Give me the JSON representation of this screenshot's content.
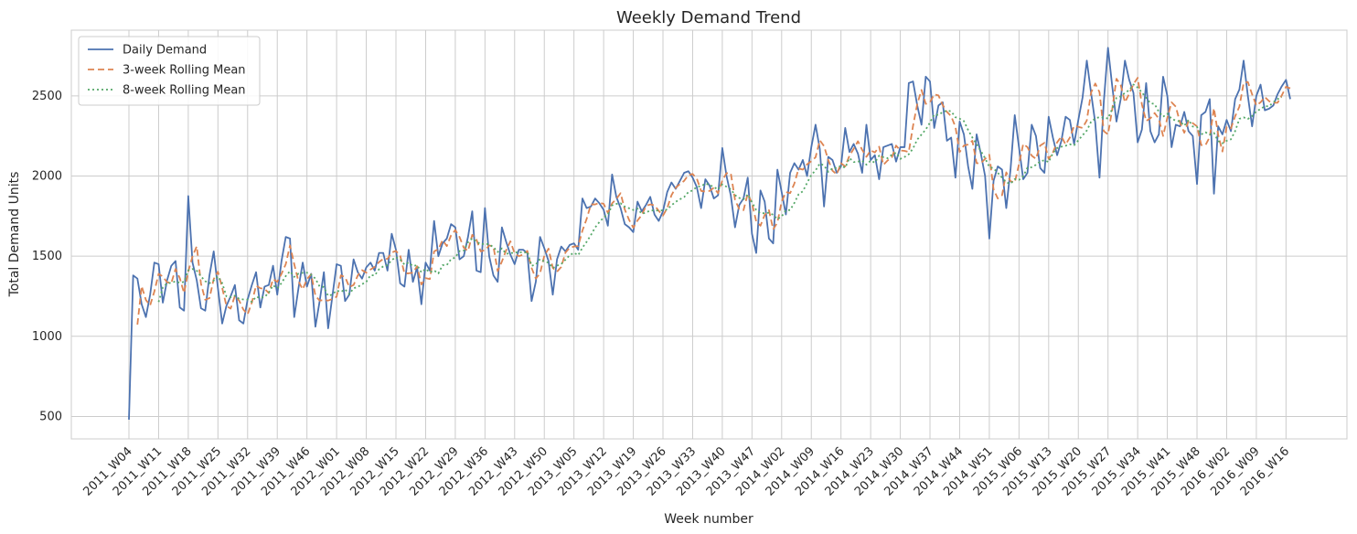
{
  "chart_data": {
    "type": "line",
    "title": "Weekly Demand Trend",
    "xlabel": "Week number",
    "ylabel": "Total Demand Units",
    "ylim": [
      360,
      2910
    ],
    "yticks": [
      500,
      1000,
      1500,
      2000,
      2500
    ],
    "grid": true,
    "legend": "top-left",
    "x_tick_labels": [
      "2011_W04",
      "2011_W11",
      "2011_W18",
      "2011_W25",
      "2011_W32",
      "2011_W39",
      "2011_W46",
      "2012_W01",
      "2012_W08",
      "2012_W15",
      "2012_W22",
      "2012_W29",
      "2012_W36",
      "2012_W43",
      "2012_W50",
      "2013_W05",
      "2013_W12",
      "2013_W19",
      "2013_W26",
      "2013_W33",
      "2013_W40",
      "2013_W47",
      "2014_W02",
      "2014_W09",
      "2014_W16",
      "2014_W23",
      "2014_W30",
      "2014_W37",
      "2014_W44",
      "2014_W51",
      "2015_W06",
      "2015_W13",
      "2015_W20",
      "2015_W27",
      "2015_W34",
      "2015_W41",
      "2015_W48",
      "2016_W02",
      "2016_W09",
      "2016_W16"
    ],
    "series": [
      {
        "name": "Daily Demand",
        "color": "#4c72b0",
        "dash": "solid",
        "values": [
          480,
          1380,
          1360,
          1200,
          1120,
          1260,
          1460,
          1450,
          1210,
          1350,
          1440,
          1470,
          1180,
          1160,
          1875,
          1460,
          1350,
          1175,
          1160,
          1380,
          1530,
          1300,
          1080,
          1190,
          1250,
          1320,
          1100,
          1080,
          1230,
          1320,
          1400,
          1180,
          1310,
          1320,
          1440,
          1260,
          1470,
          1620,
          1610,
          1120,
          1300,
          1460,
          1310,
          1390,
          1060,
          1220,
          1400,
          1050,
          1250,
          1450,
          1440,
          1220,
          1260,
          1480,
          1400,
          1360,
          1430,
          1460,
          1410,
          1520,
          1520,
          1410,
          1640,
          1540,
          1330,
          1310,
          1540,
          1340,
          1430,
          1200,
          1460,
          1410,
          1720,
          1500,
          1580,
          1610,
          1700,
          1680,
          1480,
          1500,
          1620,
          1780,
          1410,
          1400,
          1800,
          1500,
          1380,
          1340,
          1680,
          1590,
          1510,
          1450,
          1540,
          1540,
          1520,
          1220,
          1340,
          1620,
          1550,
          1470,
          1260,
          1480,
          1560,
          1530,
          1570,
          1580,
          1540,
          1860,
          1800,
          1810,
          1860,
          1830,
          1790,
          1690,
          2010,
          1870,
          1800,
          1700,
          1680,
          1650,
          1840,
          1780,
          1820,
          1870,
          1760,
          1720,
          1780,
          1900,
          1960,
          1920,
          1970,
          2020,
          2030,
          1990,
          1930,
          1800,
          1980,
          1940,
          1860,
          1880,
          2175,
          2000,
          1880,
          1680,
          1820,
          1860,
          1990,
          1640,
          1520,
          1910,
          1840,
          1610,
          1580,
          2040,
          1900,
          1760,
          2020,
          2080,
          2040,
          2100,
          2000,
          2180,
          2320,
          2170,
          1810,
          2120,
          2100,
          2020,
          2060,
          2300,
          2150,
          2200,
          2140,
          2020,
          2320,
          2100,
          2130,
          1980,
          2180,
          2190,
          2200,
          2090,
          2180,
          2180,
          2580,
          2590,
          2440,
          2320,
          2620,
          2590,
          2300,
          2440,
          2460,
          2220,
          2240,
          1990,
          2340,
          2260,
          2060,
          1920,
          2260,
          2140,
          2000,
          1610,
          1970,
          2060,
          2040,
          1800,
          2040,
          2380,
          2180,
          1980,
          2020,
          2320,
          2250,
          2050,
          2020,
          2370,
          2240,
          2130,
          2220,
          2370,
          2350,
          2200,
          2350,
          2490,
          2720,
          2520,
          2330,
          1990,
          2460,
          2800,
          2560,
          2340,
          2480,
          2720,
          2600,
          2520,
          2210,
          2290,
          2580,
          2280,
          2210,
          2260,
          2620,
          2500,
          2180,
          2320,
          2310,
          2400,
          2280,
          2250,
          1950,
          2380,
          2400,
          2480,
          1890,
          2310,
          2260,
          2350,
          2280,
          2480,
          2540,
          2720,
          2500,
          2310,
          2500,
          2570,
          2410,
          2420,
          2440,
          2510,
          2560,
          2600,
          2480
        ]
      },
      {
        "name": "3-week Rolling Mean",
        "color": "#dd8452",
        "dash": "dashed",
        "values": [
          null,
          null,
          1073,
          1313,
          1227,
          1193,
          1280,
          1390,
          1373,
          1337,
          1333,
          1420,
          1363,
          1270,
          1405,
          1498,
          1562,
          1328,
          1228,
          1238,
          1357,
          1403,
          1303,
          1190,
          1173,
          1253,
          1223,
          1167,
          1137,
          1210,
          1317,
          1300,
          1297,
          1270,
          1357,
          1340,
          1390,
          1450,
          1567,
          1450,
          1343,
          1293,
          1357,
          1387,
          1253,
          1223,
          1227,
          1223,
          1233,
          1247,
          1380,
          1370,
          1307,
          1320,
          1380,
          1413,
          1397,
          1417,
          1433,
          1463,
          1483,
          1483,
          1523,
          1533,
          1503,
          1393,
          1393,
          1397,
          1437,
          1323,
          1363,
          1357,
          1530,
          1543,
          1600,
          1563,
          1630,
          1663,
          1620,
          1553,
          1533,
          1633,
          1603,
          1530,
          1537,
          1567,
          1560,
          1407,
          1467,
          1537,
          1593,
          1517,
          1500,
          1510,
          1533,
          1427,
          1360,
          1393,
          1503,
          1547,
          1427,
          1403,
          1433,
          1523,
          1553,
          1560,
          1563,
          1660,
          1733,
          1823,
          1823,
          1833,
          1827,
          1770,
          1830,
          1857,
          1893,
          1790,
          1727,
          1677,
          1723,
          1757,
          1813,
          1823,
          1817,
          1783,
          1753,
          1800,
          1880,
          1927,
          1950,
          1970,
          2007,
          2013,
          1983,
          1907,
          1903,
          1907,
          1927,
          1893,
          1972,
          2018,
          2018,
          1852,
          1793,
          1787,
          1890,
          1830,
          1717,
          1690,
          1757,
          1787,
          1667,
          1710,
          1840,
          1900,
          1893,
          1953,
          2047,
          2040,
          2073,
          2093,
          2117,
          2223,
          2187,
          2100,
          2033,
          2010,
          2080,
          2060,
          2127,
          2170,
          2217,
          2163,
          2120,
          2160,
          2147,
          2183,
          2070,
          2097,
          2117,
          2190,
          2160,
          2157,
          2150,
          2313,
          2450,
          2537,
          2450,
          2460,
          2510,
          2503,
          2443,
          2400,
          2373,
          2307,
          2150,
          2190,
          2197,
          2220,
          2080,
          2080,
          2107,
          2133,
          1917,
          1860,
          1880,
          2023,
          1967,
          1960,
          2073,
          2200,
          2180,
          2127,
          2107,
          2190,
          2207,
          2107,
          2147,
          2210,
          2247,
          2197,
          2240,
          2313,
          2307,
          2300,
          2347,
          2520,
          2577,
          2523,
          2280,
          2260,
          2417,
          2607,
          2567,
          2460,
          2513,
          2573,
          2613,
          2447,
          2343,
          2360,
          2393,
          2357,
          2250,
          2363,
          2460,
          2433,
          2333,
          2270,
          2343,
          2330,
          2310,
          2193,
          2193,
          2243,
          2423,
          2257,
          2153,
          2307,
          2297,
          2373,
          2433,
          2580,
          2587,
          2510,
          2440,
          2460,
          2493,
          2467,
          2457,
          2457,
          2503,
          2557,
          2547
        ]
      },
      {
        "name": "8-week Rolling Mean",
        "color": "#55a868",
        "dash": "dotted",
        "values": [
          null,
          null,
          null,
          null,
          null,
          null,
          null,
          1214,
          1305,
          1331,
          1334,
          1343,
          1334,
          1340,
          1412,
          1420,
          1409,
          1374,
          1344,
          1331,
          1348,
          1374,
          1332,
          1249,
          1244,
          1254,
          1234,
          1230,
          1229,
          1215,
          1247,
          1240,
          1245,
          1273,
          1318,
          1300,
          1332,
          1376,
          1406,
          1371,
          1391,
          1396,
          1397,
          1384,
          1360,
          1310,
          1308,
          1252,
          1261,
          1286,
          1277,
          1293,
          1263,
          1300,
          1308,
          1325,
          1340,
          1381,
          1380,
          1418,
          1436,
          1444,
          1476,
          1494,
          1479,
          1448,
          1460,
          1438,
          1444,
          1399,
          1421,
          1399,
          1411,
          1392,
          1444,
          1445,
          1481,
          1492,
          1532,
          1535,
          1587,
          1611,
          1591,
          1574,
          1578,
          1573,
          1557,
          1526,
          1549,
          1514,
          1520,
          1520,
          1529,
          1519,
          1528,
          1440,
          1448,
          1482,
          1467,
          1460,
          1426,
          1441,
          1451,
          1478,
          1506,
          1521,
          1506,
          1553,
          1590,
          1632,
          1679,
          1713,
          1741,
          1759,
          1817,
          1826,
          1830,
          1809,
          1799,
          1788,
          1797,
          1764,
          1772,
          1785,
          1785,
          1785,
          1786,
          1791,
          1817,
          1839,
          1855,
          1869,
          1900,
          1910,
          1933,
          1936,
          1953,
          1945,
          1931,
          1916,
          1948,
          1933,
          1918,
          1881,
          1863,
          1855,
          1885,
          1837,
          1788,
          1768,
          1768,
          1771,
          1758,
          1731,
          1748,
          1786,
          1788,
          1832,
          1886,
          1905,
          1957,
          2007,
          2035,
          2078,
          2066,
          2026,
          2048,
          2051,
          2064,
          2052,
          2112,
          2087,
          2090,
          2096,
          2071,
          2096,
          2084,
          2127,
          2118,
          2111,
          2133,
          2145,
          2107,
          2119,
          2136,
          2172,
          2228,
          2259,
          2290,
          2334,
          2383,
          2381,
          2399,
          2409,
          2404,
          2367,
          2358,
          2343,
          2287,
          2240,
          2199,
          2156,
          2111,
          2057,
          2048,
          2020,
          1990,
          1960,
          1952,
          1981,
          1976,
          1999,
          2052,
          2055,
          2070,
          2091,
          2099,
          2087,
          2143,
          2175,
          2183,
          2189,
          2198,
          2192,
          2223,
          2254,
          2284,
          2338,
          2359,
          2368,
          2364,
          2359,
          2419,
          2488,
          2497,
          2519,
          2536,
          2571,
          2552,
          2521,
          2488,
          2455,
          2449,
          2401,
          2370,
          2389,
          2357,
          2346,
          2341,
          2314,
          2351,
          2309,
          2306,
          2260,
          2273,
          2259,
          2269,
          2218,
          2204,
          2220,
          2229,
          2280,
          2357,
          2366,
          2356,
          2374,
          2404,
          2418,
          2436,
          2435,
          2460,
          2480,
          2492
        ]
      }
    ]
  }
}
